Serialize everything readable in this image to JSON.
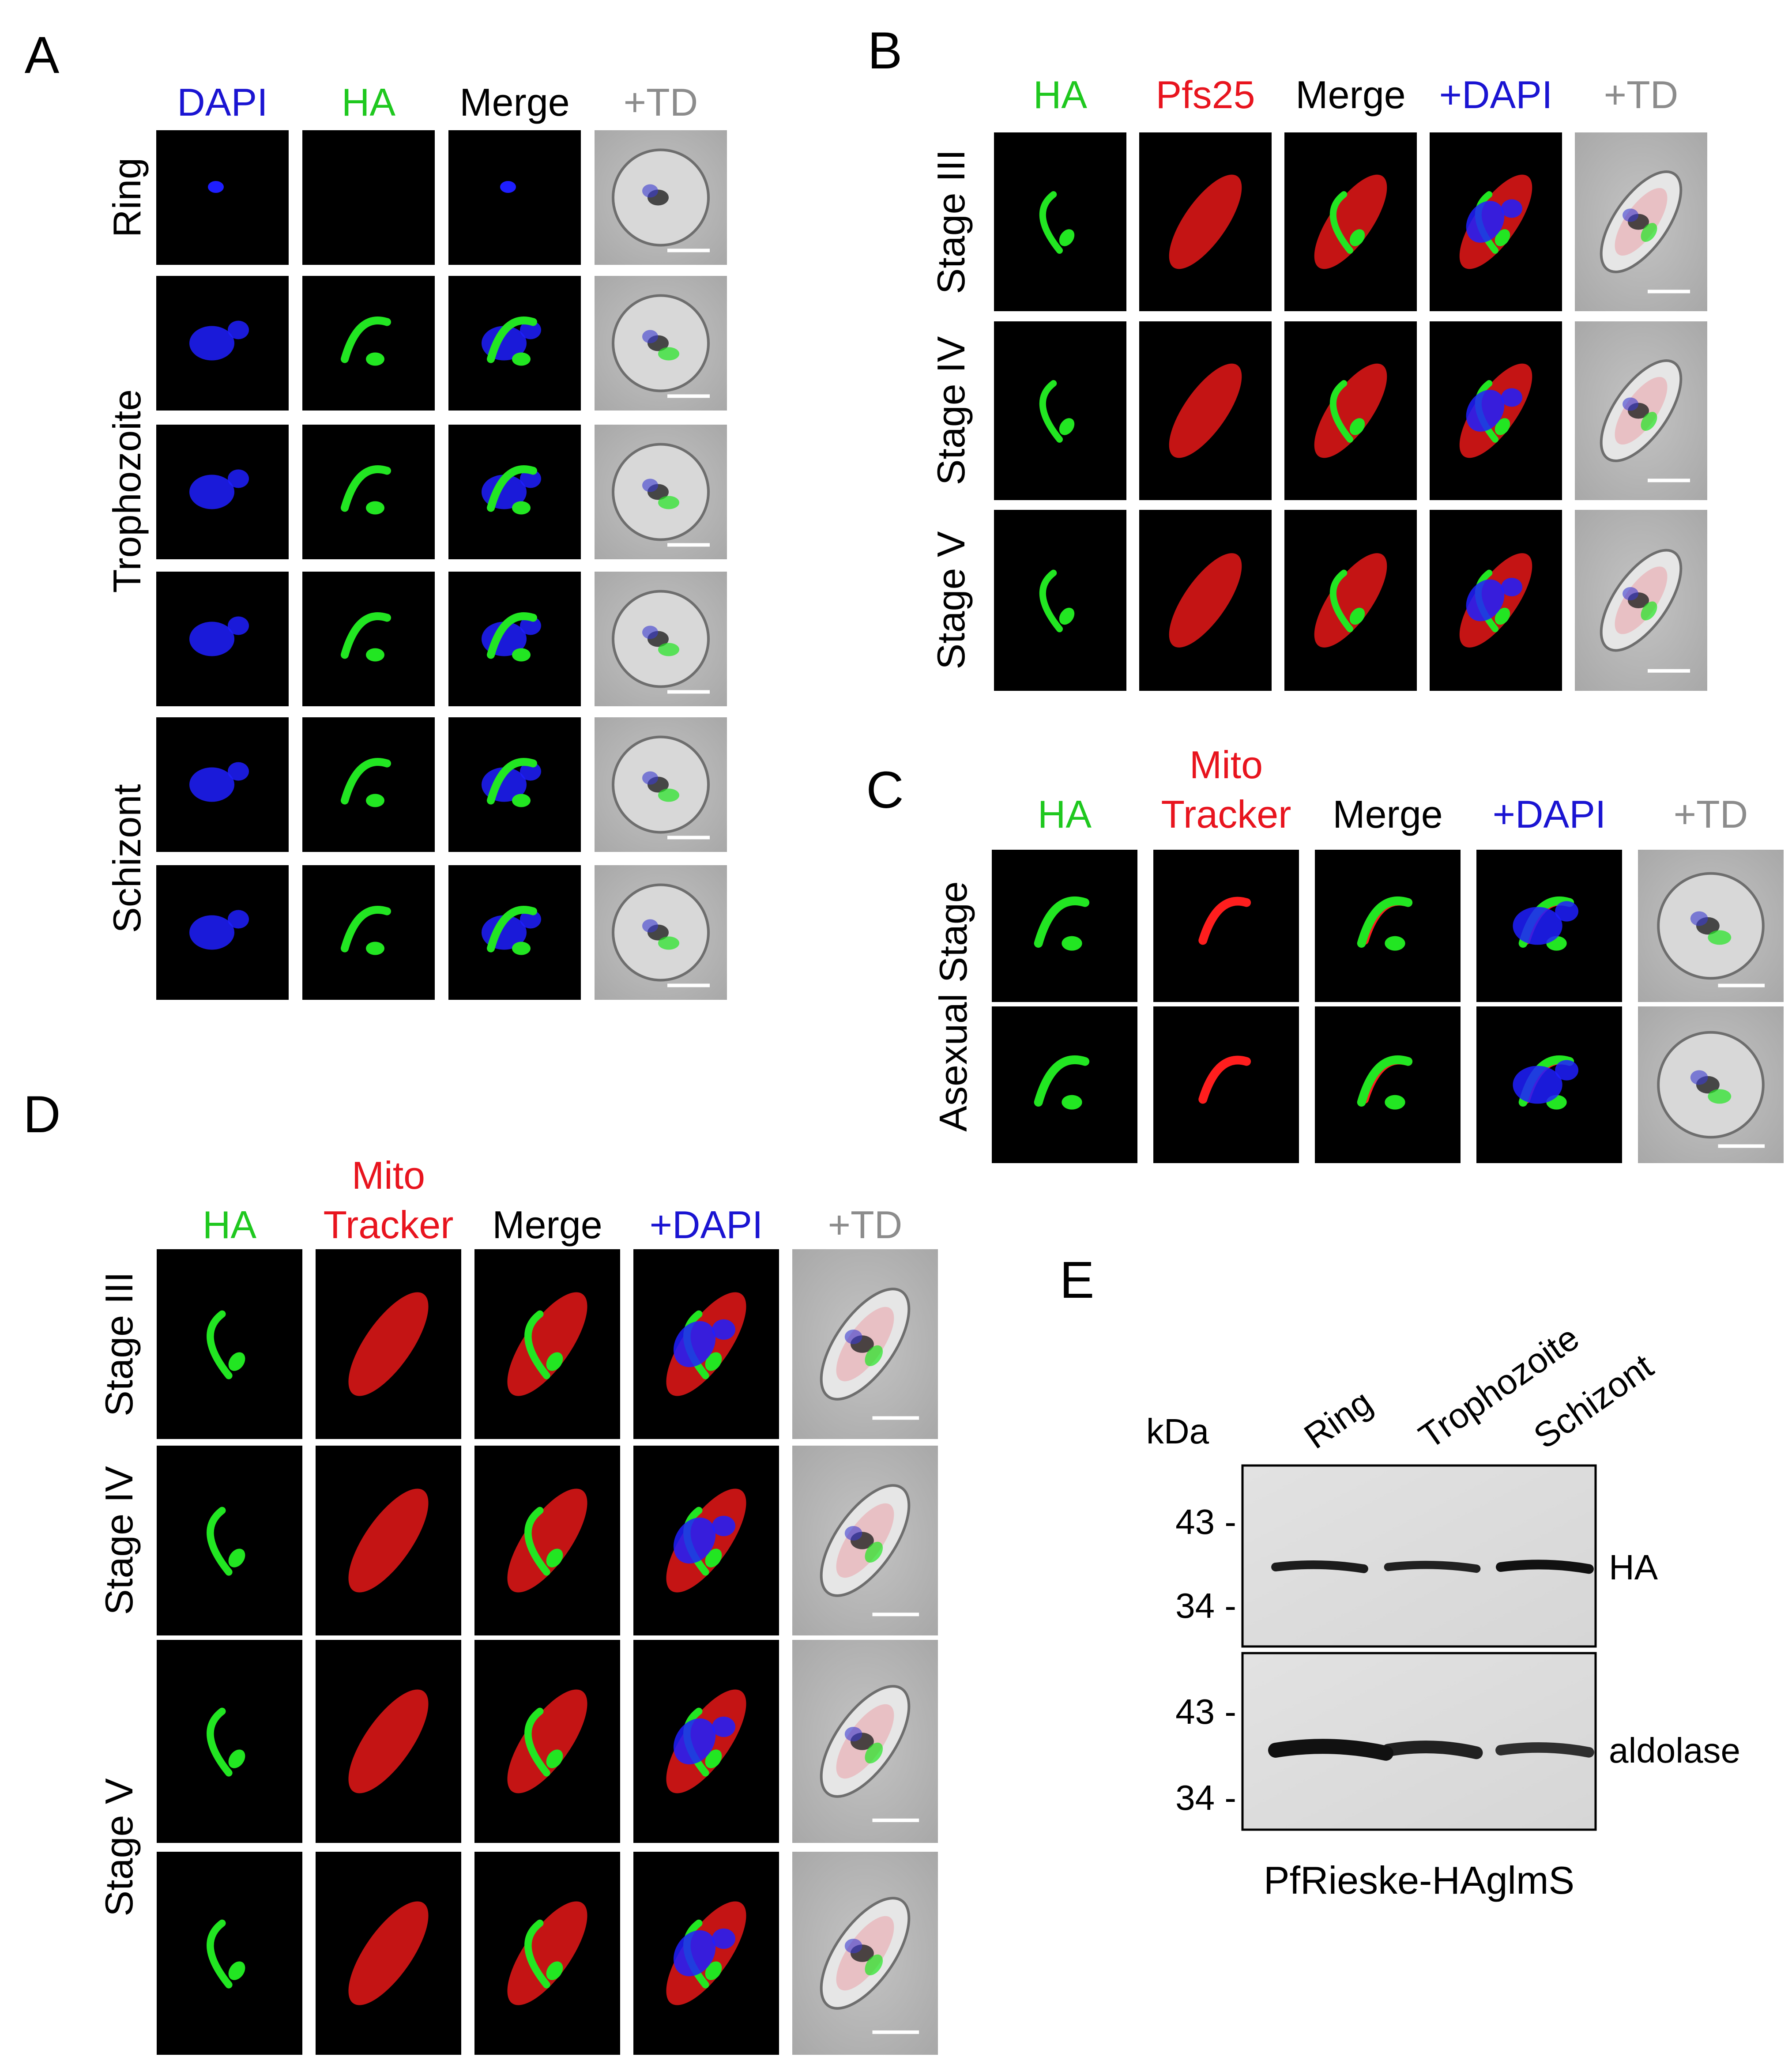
{
  "colors": {
    "blue": "#1a14d2",
    "green": "#1fc81f",
    "red": "#e8141e",
    "black": "#000000",
    "gray": "#8c8c8c"
  },
  "panels": {
    "A": {
      "letter": "A",
      "columns": [
        {
          "label": "DAPI",
          "color": "blue"
        },
        {
          "label": "HA",
          "color": "green"
        },
        {
          "label": "Merge",
          "color": "black"
        },
        {
          "label": "+TD",
          "color": "gray"
        }
      ],
      "row_groups": [
        {
          "label": "Ring",
          "rows": 1
        },
        {
          "label": "Trophozoite",
          "rows": 3
        },
        {
          "label": "Schizont",
          "rows": 2
        }
      ]
    },
    "B": {
      "letter": "B",
      "columns": [
        {
          "label": "HA",
          "color": "green"
        },
        {
          "label": "Pfs25",
          "color": "red"
        },
        {
          "label": "Merge",
          "color": "black"
        },
        {
          "label": "+DAPI",
          "color": "blue"
        },
        {
          "label": "+TD",
          "color": "gray"
        }
      ],
      "row_groups": [
        {
          "label": "Stage III",
          "rows": 1
        },
        {
          "label": "Stage IV",
          "rows": 1
        },
        {
          "label": "Stage V",
          "rows": 1
        }
      ]
    },
    "C": {
      "letter": "C",
      "columns": [
        {
          "label": "HA",
          "color": "green"
        },
        {
          "label": "Mito",
          "label2": "Tracker",
          "color": "red"
        },
        {
          "label": "Merge",
          "color": "black"
        },
        {
          "label": "+DAPI",
          "color": "blue"
        },
        {
          "label": "+TD",
          "color": "gray"
        }
      ],
      "row_groups": [
        {
          "label": "Asexual Stage",
          "rows": 2
        }
      ]
    },
    "D": {
      "letter": "D",
      "columns": [
        {
          "label": "HA",
          "color": "green"
        },
        {
          "label": "Mito",
          "label2": "Tracker",
          "color": "red"
        },
        {
          "label": "Merge",
          "color": "black"
        },
        {
          "label": "+DAPI",
          "color": "blue"
        },
        {
          "label": "+TD",
          "color": "gray"
        }
      ],
      "row_groups": [
        {
          "label": "Stage III",
          "rows": 1
        },
        {
          "label": "Stage IV",
          "rows": 1
        },
        {
          "label": "Stage V",
          "rows": 2
        }
      ]
    },
    "E": {
      "letter": "E",
      "unit_label": "kDa",
      "lanes": [
        "Ring",
        "Trophozoite",
        "Schizont"
      ],
      "blots": [
        {
          "label": "HA",
          "markers": [
            "43 -",
            "34 -"
          ],
          "band_intensity": [
            0.9,
            0.85,
            1.0
          ]
        },
        {
          "label": "aldolase",
          "markers": [
            "43 -",
            "34 -"
          ],
          "band_intensity": [
            1.0,
            0.85,
            0.7
          ]
        }
      ],
      "caption": "PfRieske-HAglmS"
    }
  }
}
